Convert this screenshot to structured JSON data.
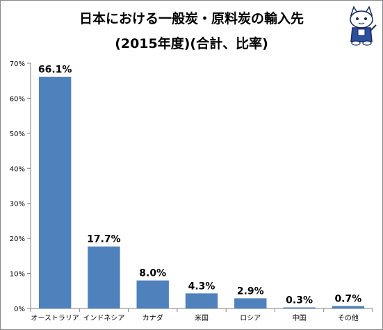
{
  "chart_data": {
    "type": "bar",
    "title_lines": [
      "日本における一般炭・原料炭の輸入先",
      "(2015年度)(合計、比率)"
    ],
    "categories": [
      "オーストラリア",
      "インドネシア",
      "カナダ",
      "米国",
      "ロシア",
      "中国",
      "その他"
    ],
    "values": [
      66.1,
      17.7,
      8.0,
      4.3,
      2.9,
      0.3,
      0.7
    ],
    "data_labels": [
      "66.1%",
      "17.7%",
      "8.0%",
      "4.3%",
      "2.9%",
      "0.3%",
      "0.7%"
    ],
    "ylim": [
      0,
      70
    ],
    "yticks": [
      0,
      10,
      20,
      30,
      40,
      50,
      60,
      70
    ],
    "ytick_labels": [
      "0%",
      "10%",
      "20%",
      "30%",
      "40%",
      "50%",
      "60%",
      "70%"
    ],
    "xlabel": "",
    "ylabel": "",
    "grid": false,
    "legend": "none",
    "colors": {
      "bar": "#4f81bd",
      "axis": "#808080",
      "text": "#000000"
    }
  },
  "mascot": {
    "icon": "cartoon-cat-mascot-icon"
  }
}
